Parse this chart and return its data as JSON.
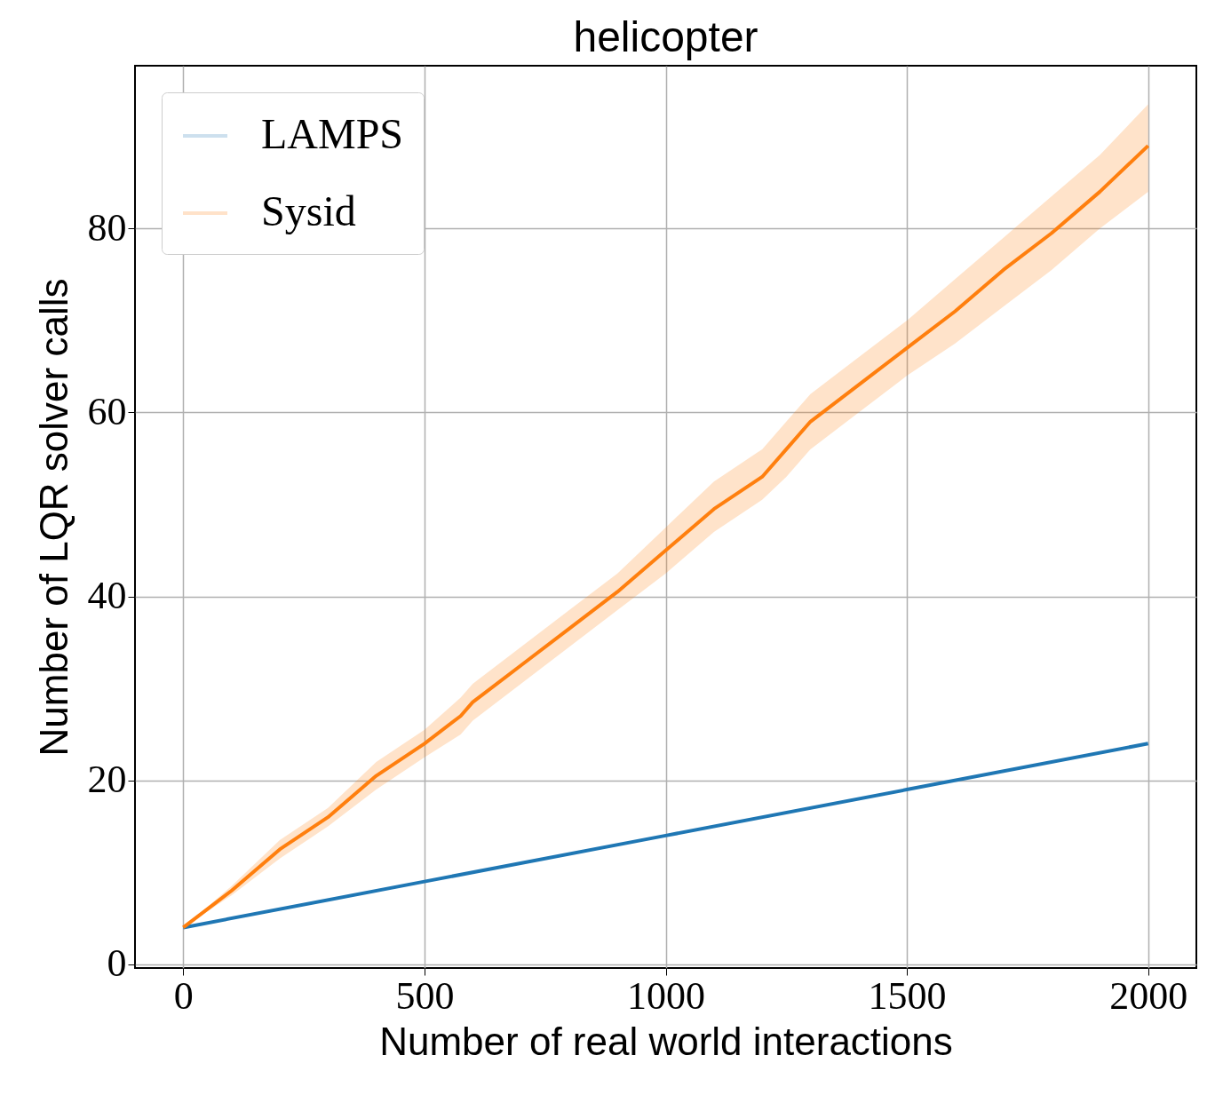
{
  "chart_data": {
    "type": "line",
    "title": "helicopter",
    "xlabel": "Number of real world interactions",
    "ylabel": "Number of LQR solver calls",
    "xlim": [
      -100,
      2100
    ],
    "ylim": [
      -0.4,
      97.7
    ],
    "xticks": [
      0,
      500,
      1000,
      1500,
      2000
    ],
    "yticks": [
      0,
      20,
      40,
      60,
      80
    ],
    "grid": true,
    "legend": "top left",
    "series": [
      {
        "name": "LAMPS",
        "color": "#1f77b4",
        "x": [
          0,
          500,
          1000,
          1500,
          2000
        ],
        "values": [
          4,
          9,
          14,
          19,
          24
        ]
      },
      {
        "name": "Sysid",
        "color": "#ff7f0e",
        "x": [
          0,
          100,
          200,
          300,
          400,
          500,
          575,
          600,
          700,
          800,
          900,
          1000,
          1100,
          1200,
          1250,
          1300,
          1400,
          1500,
          1600,
          1700,
          1800,
          1900,
          2000
        ],
        "values": [
          4,
          8,
          12.5,
          16,
          20.5,
          24,
          27,
          28.5,
          32.5,
          36.5,
          40.5,
          45,
          49.5,
          53,
          56,
          59,
          63,
          67,
          71,
          75.5,
          79.5,
          84,
          89
        ],
        "lower": [
          4,
          7.5,
          11.5,
          15,
          19,
          22.5,
          25,
          26.5,
          30.5,
          34.5,
          38.5,
          42.5,
          47,
          50.5,
          53,
          56,
          60,
          64,
          67.5,
          71.5,
          75.5,
          80,
          84
        ],
        "upper": [
          4,
          8.5,
          13.5,
          17,
          22,
          25.5,
          29,
          30.5,
          34.5,
          38.5,
          42.5,
          47.5,
          52.5,
          56,
          59,
          62,
          66,
          70,
          74.5,
          79,
          83.5,
          88,
          93.5
        ]
      }
    ]
  }
}
